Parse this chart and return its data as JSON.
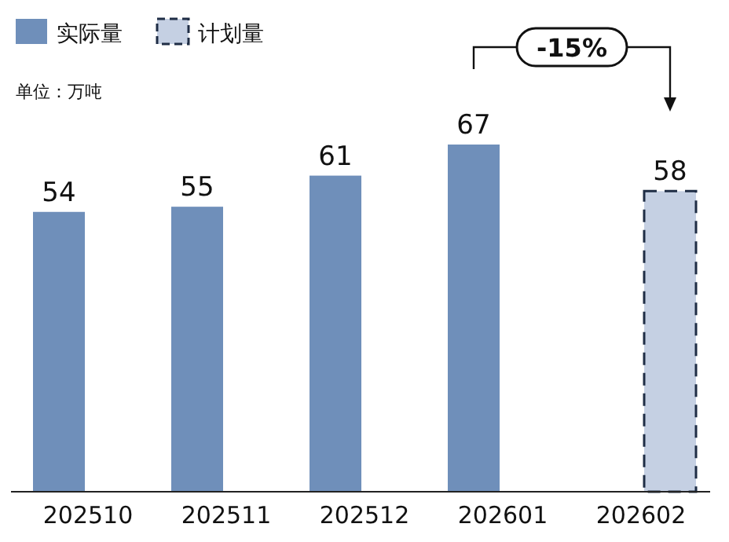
{
  "chart_data": {
    "type": "bar",
    "categories": [
      "202510",
      "202511",
      "202512",
      "202601",
      "202602"
    ],
    "series": [
      {
        "name": "实际量",
        "color": "#6f8fba",
        "values": [
          54,
          55,
          61,
          67,
          null
        ]
      },
      {
        "name": "计划量",
        "color": "#c5d0e3",
        "line_style": "dashed",
        "values": [
          null,
          null,
          null,
          null,
          58
        ]
      }
    ],
    "data_labels": true,
    "legend": "top left",
    "annotations": [
      "单位：万吨",
      "-15%"
    ]
  }
}
